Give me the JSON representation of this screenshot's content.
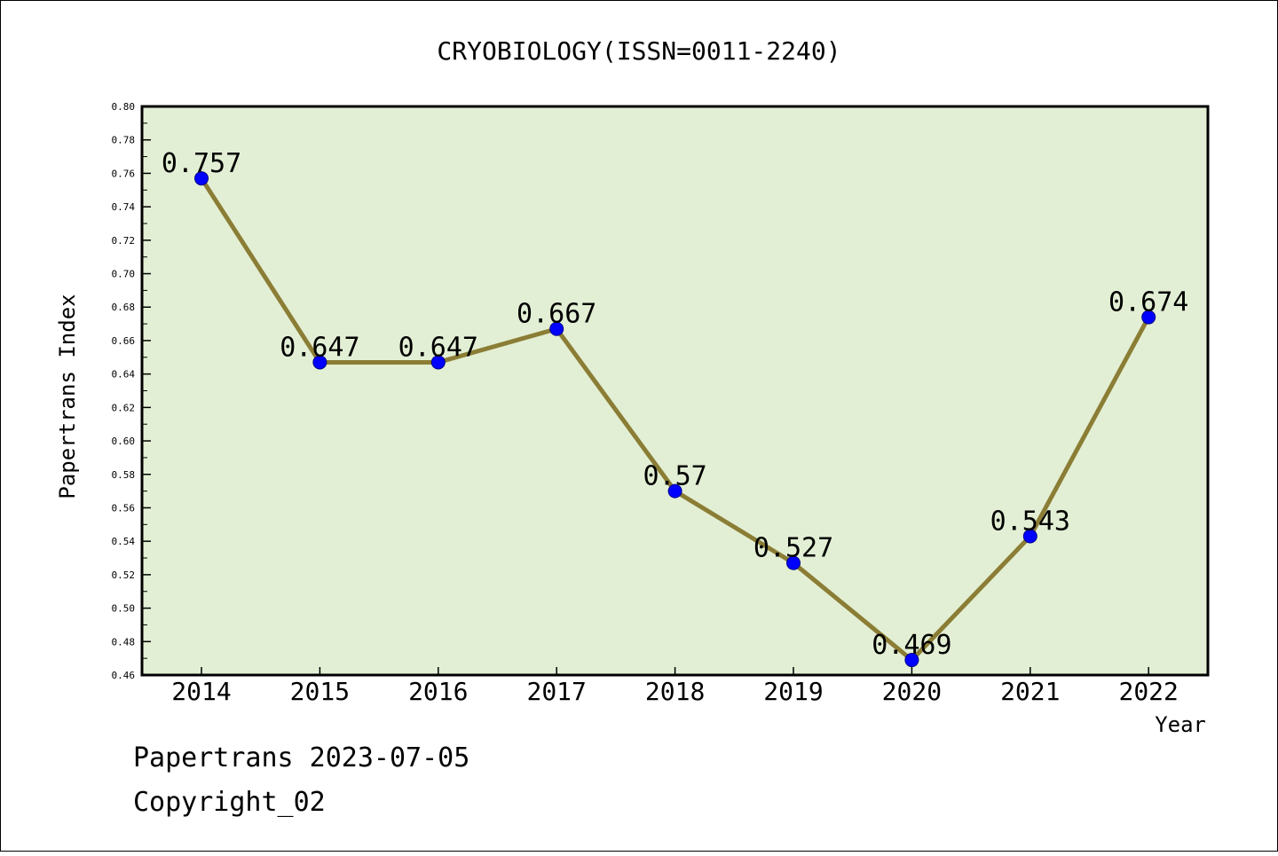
{
  "chart_data": {
    "type": "line",
    "title": "CRYOBIOLOGY(ISSN=0011-2240)",
    "xlabel": "Year",
    "ylabel": "Papertrans Index",
    "categories": [
      "2014",
      "2015",
      "2016",
      "2017",
      "2018",
      "2019",
      "2020",
      "2021",
      "2022"
    ],
    "series": [
      {
        "values": [
          0.757,
          0.647,
          0.647,
          0.667,
          0.57,
          0.527,
          0.469,
          0.543,
          0.674
        ],
        "labels": [
          "0.757",
          "0.647",
          "0.647",
          "0.667",
          "0.57",
          "0.527",
          "0.469",
          "0.543",
          "0.674"
        ]
      }
    ],
    "ylim": [
      0.46,
      0.8
    ],
    "yticks": [
      "0.46",
      "0.48",
      "0.50",
      "0.52",
      "0.54",
      "0.56",
      "0.58",
      "0.60",
      "0.62",
      "0.64",
      "0.66",
      "0.68",
      "0.70",
      "0.72",
      "0.74",
      "0.76",
      "0.78",
      "0.80"
    ],
    "grid": false,
    "legend": "none",
    "colors": {
      "plot_background": "#e2efd4",
      "line": "#8b7d35",
      "marker": "#0000ff"
    }
  },
  "footer": {
    "date_line": "Papertrans 2023-07-05",
    "copyright": "Copyright_02"
  }
}
